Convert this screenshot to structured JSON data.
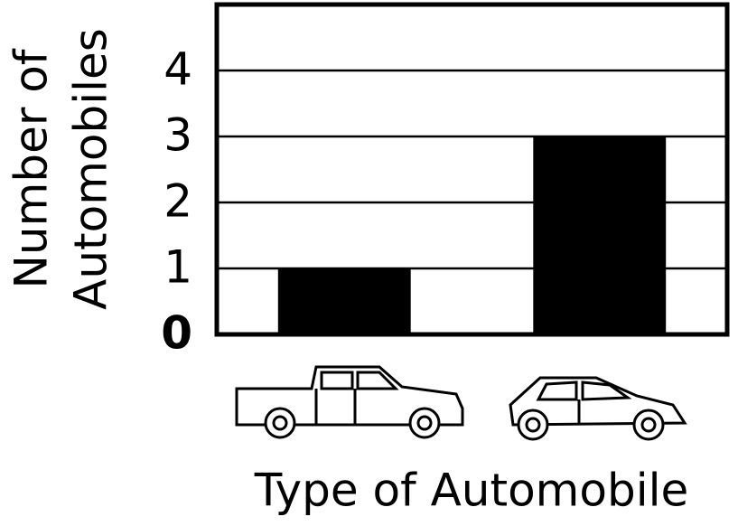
{
  "chart_data": {
    "type": "bar",
    "ylabel": [
      "Number of",
      "Automobiles"
    ],
    "xlabel": "Type of Automobile",
    "categories": [
      null,
      null
    ],
    "values": [
      1,
      3
    ],
    "color": "#000000",
    "ylim": [
      0,
      5
    ],
    "yticks": [
      0,
      1,
      2,
      3,
      4
    ],
    "grid": true
  }
}
